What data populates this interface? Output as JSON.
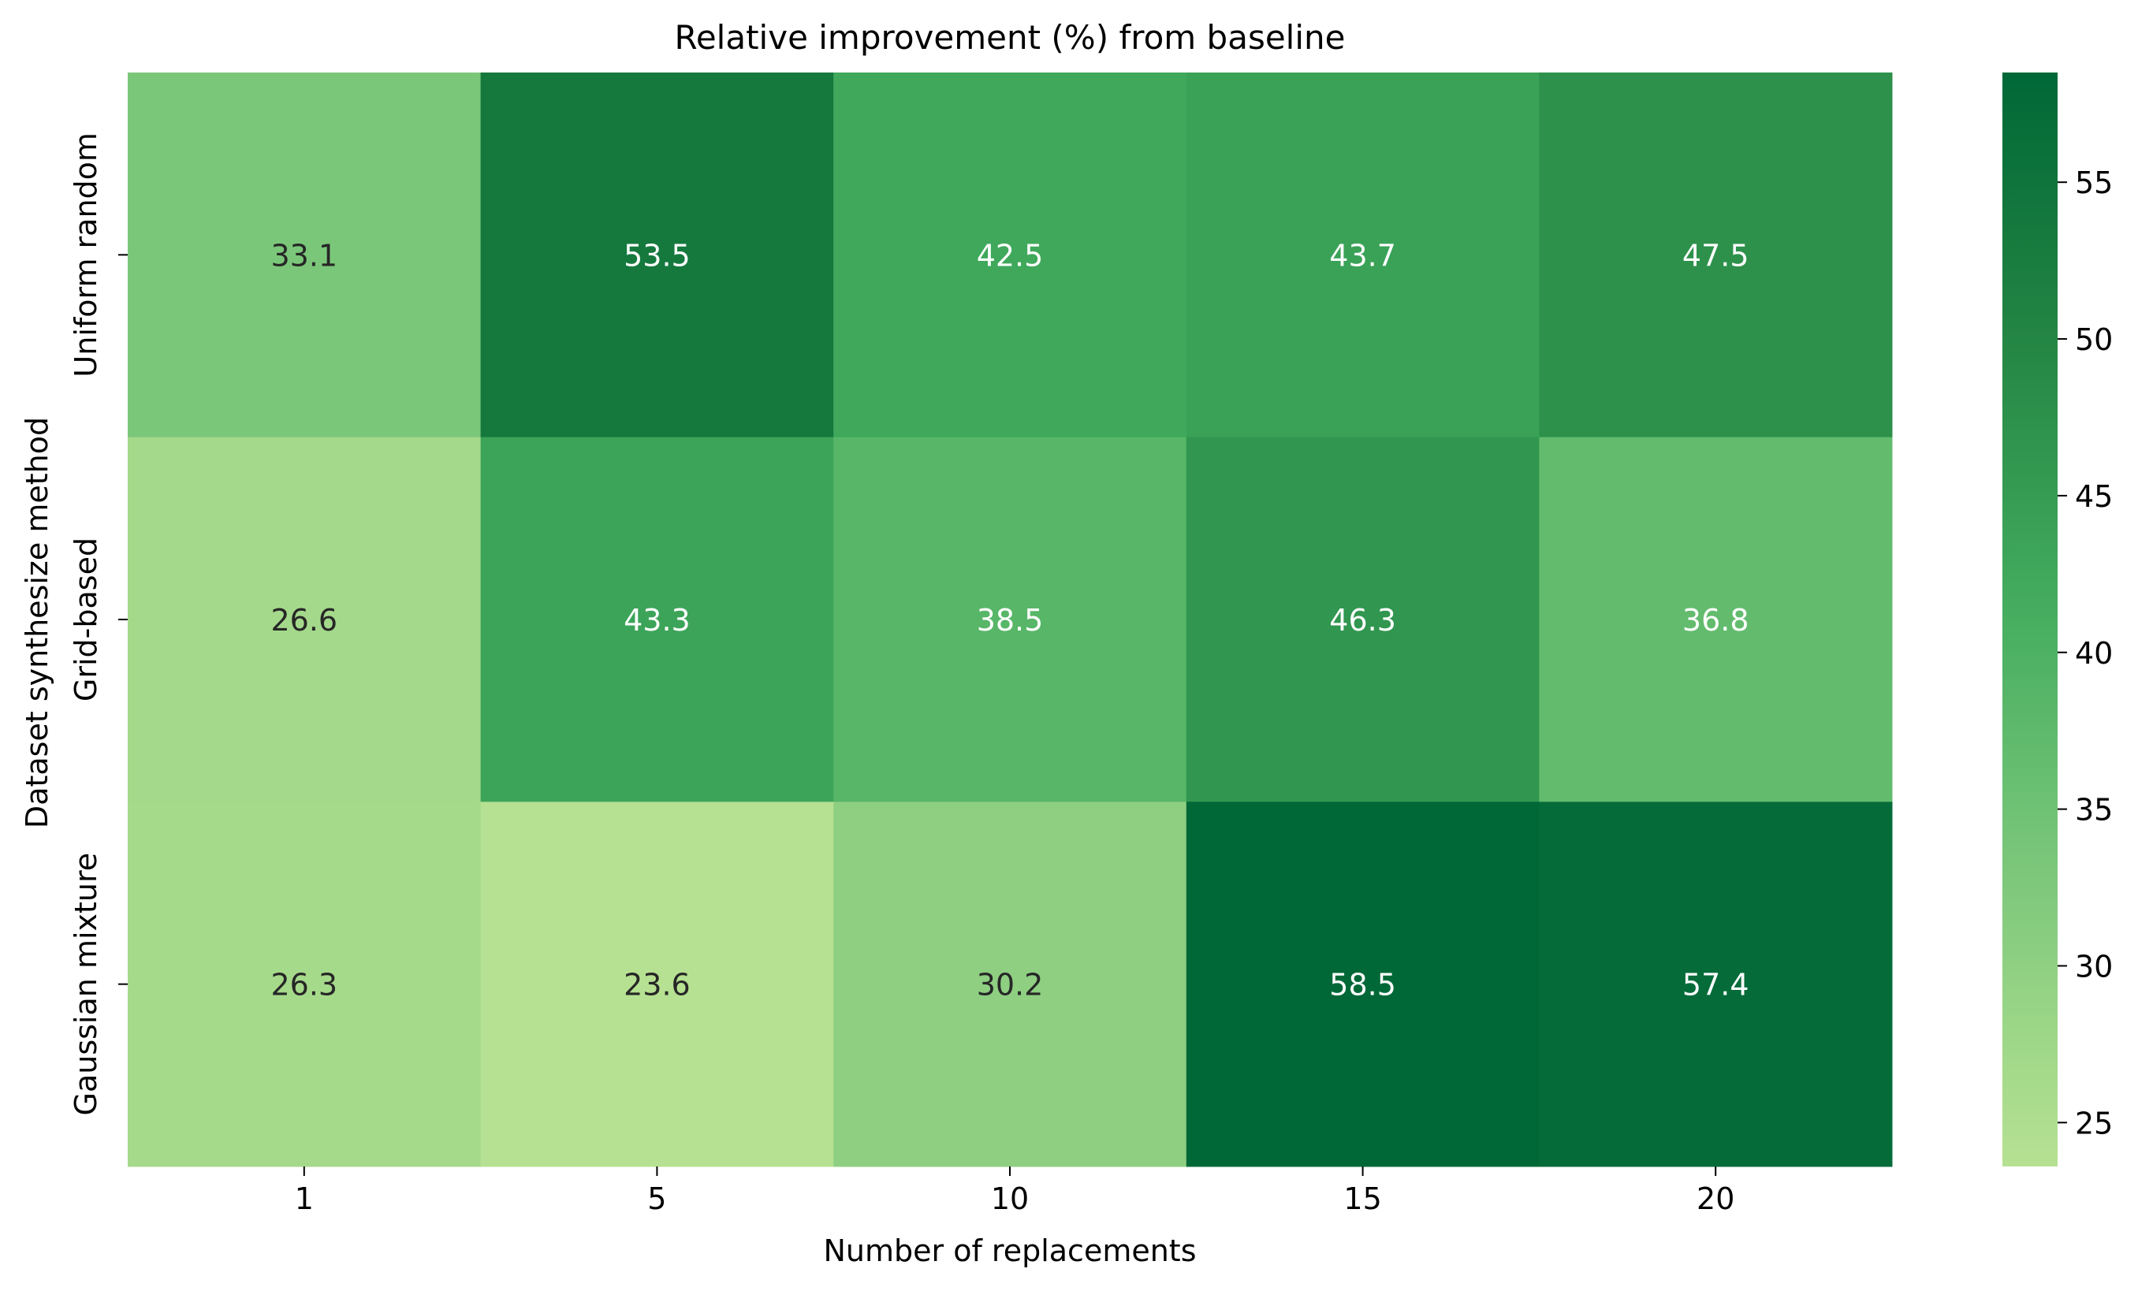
{
  "chart_data": {
    "type": "heatmap",
    "title": "Relative improvement (%) from baseline",
    "xlabel": "Number of replacements",
    "ylabel": "Dataset synthesize method",
    "x_categories": [
      "1",
      "5",
      "10",
      "15",
      "20"
    ],
    "y_categories": [
      "Uniform random",
      "Grid-based",
      "Gaussian mixture"
    ],
    "values": [
      [
        33.1,
        53.5,
        42.5,
        43.7,
        47.5
      ],
      [
        26.6,
        43.3,
        38.5,
        46.3,
        36.8
      ],
      [
        26.3,
        23.6,
        30.2,
        58.5,
        57.4
      ]
    ],
    "colorbar": {
      "min": 23.6,
      "max": 58.5,
      "ticks": [
        25,
        30,
        35,
        40,
        45,
        50,
        55
      ],
      "colormap_stops": [
        "#f7fcb9",
        "#d9f0a3",
        "#addd8e",
        "#78c679",
        "#41ab5d",
        "#238443",
        "#006837"
      ]
    },
    "annotation_dark_text_color": "#262626",
    "annotation_light_text_color": "#ffffff"
  }
}
